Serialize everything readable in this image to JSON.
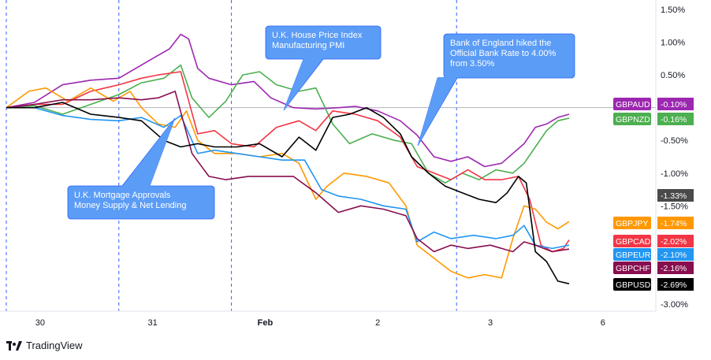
{
  "brand": {
    "name": "TradingView"
  },
  "annotations": [
    {
      "id": "house-price",
      "text": [
        "U.K. House Price Index",
        "Manufacturing PMI"
      ]
    },
    {
      "id": "boe",
      "text": [
        "Bank of England hiked the",
        "Official Bank Rate to 4.00%",
        "from 3.50%"
      ]
    },
    {
      "id": "mortgage",
      "text": [
        "U.K. Mortgage Approvals",
        "Money Supply & Net Lending"
      ]
    }
  ],
  "chart_data": {
    "type": "line",
    "ylim": [
      -3.15,
      1.6
    ],
    "yticks": [
      1.5,
      1.0,
      0.5,
      -0.5,
      -1.0,
      -1.5,
      -3.0
    ],
    "ytick_labels": [
      "1.50%",
      "1.00%",
      "0.50%",
      "-0.50%",
      "-1.00%",
      "-1.50%",
      "-3.00%"
    ],
    "x_ticks": [
      {
        "label": "30",
        "t": 0.3,
        "bold": false
      },
      {
        "label": "31",
        "t": 1.3,
        "bold": false
      },
      {
        "label": "Feb",
        "t": 2.3,
        "bold": true
      },
      {
        "label": "2",
        "t": 3.3,
        "bold": false
      },
      {
        "label": "3",
        "t": 4.3,
        "bold": false
      },
      {
        "label": "6",
        "t": 5.3,
        "bold": false
      }
    ],
    "session_lines": [
      0.0,
      1.0,
      2.0,
      4.0
    ],
    "current_value_tag": {
      "value": -1.33,
      "label": "-1.33%",
      "color": "#4a4a4a"
    },
    "series": [
      {
        "name": "GBPAUD",
        "color": "#9c27b0",
        "last_label": "-0.10%",
        "points": [
          [
            0,
            0
          ],
          [
            0.25,
            0.08
          ],
          [
            0.5,
            0.35
          ],
          [
            0.75,
            0.42
          ],
          [
            1.0,
            0.45
          ],
          [
            1.15,
            0.6
          ],
          [
            1.3,
            0.75
          ],
          [
            1.45,
            0.9
          ],
          [
            1.55,
            1.12
          ],
          [
            1.62,
            1.05
          ],
          [
            1.7,
            0.6
          ],
          [
            1.8,
            0.45
          ],
          [
            2.0,
            0.35
          ],
          [
            2.2,
            0.4
          ],
          [
            2.35,
            0.15
          ],
          [
            2.55,
            0.0
          ],
          [
            2.75,
            -0.02
          ],
          [
            2.95,
            0.0
          ],
          [
            3.1,
            0.02
          ],
          [
            3.3,
            -0.05
          ],
          [
            3.5,
            -0.2
          ],
          [
            3.65,
            -0.42
          ],
          [
            3.8,
            -0.75
          ],
          [
            3.95,
            -0.82
          ],
          [
            4.1,
            -0.75
          ],
          [
            4.25,
            -0.9
          ],
          [
            4.4,
            -0.85
          ],
          [
            4.5,
            -0.7
          ],
          [
            4.6,
            -0.55
          ],
          [
            4.7,
            -0.3
          ],
          [
            4.8,
            -0.25
          ],
          [
            4.9,
            -0.15
          ],
          [
            5.0,
            -0.1
          ]
        ]
      },
      {
        "name": "GBPNZD",
        "color": "#4caf50",
        "last_label": "-0.16%",
        "points": [
          [
            0,
            0
          ],
          [
            0.25,
            0.03
          ],
          [
            0.5,
            -0.1
          ],
          [
            0.75,
            0.05
          ],
          [
            1.0,
            0.2
          ],
          [
            1.2,
            0.38
          ],
          [
            1.4,
            0.45
          ],
          [
            1.55,
            0.65
          ],
          [
            1.65,
            0.15
          ],
          [
            1.8,
            -0.15
          ],
          [
            1.95,
            0.1
          ],
          [
            2.1,
            0.5
          ],
          [
            2.25,
            0.55
          ],
          [
            2.4,
            0.35
          ],
          [
            2.6,
            0.25
          ],
          [
            2.75,
            0.3
          ],
          [
            2.9,
            -0.25
          ],
          [
            3.05,
            -0.55
          ],
          [
            3.25,
            -0.4
          ],
          [
            3.45,
            -0.5
          ],
          [
            3.6,
            -0.55
          ],
          [
            3.75,
            -1.0
          ],
          [
            3.9,
            -1.15
          ],
          [
            4.05,
            -1.0
          ],
          [
            4.2,
            -1.1
          ],
          [
            4.35,
            -0.95
          ],
          [
            4.5,
            -1.0
          ],
          [
            4.6,
            -0.85
          ],
          [
            4.7,
            -0.6
          ],
          [
            4.8,
            -0.35
          ],
          [
            4.9,
            -0.2
          ],
          [
            5.0,
            -0.16
          ]
        ]
      },
      {
        "name": "GBPCAD",
        "color": "#f23645",
        "last_label": "-2.02%",
        "points": [
          [
            0,
            0
          ],
          [
            0.25,
            0.05
          ],
          [
            0.5,
            0.05
          ],
          [
            0.75,
            0.25
          ],
          [
            1.0,
            0.35
          ],
          [
            1.2,
            0.45
          ],
          [
            1.35,
            0.5
          ],
          [
            1.55,
            0.55
          ],
          [
            1.7,
            -0.4
          ],
          [
            1.85,
            -0.35
          ],
          [
            2.0,
            -0.55
          ],
          [
            2.2,
            -0.6
          ],
          [
            2.4,
            -0.3
          ],
          [
            2.6,
            -0.2
          ],
          [
            2.75,
            -0.35
          ],
          [
            2.9,
            -0.05
          ],
          [
            3.1,
            -0.1
          ],
          [
            3.3,
            -0.2
          ],
          [
            3.5,
            -0.45
          ],
          [
            3.65,
            -0.9
          ],
          [
            3.8,
            -1.0
          ],
          [
            3.95,
            -1.1
          ],
          [
            4.1,
            -0.95
          ],
          [
            4.25,
            -1.1
          ],
          [
            4.4,
            -1.1
          ],
          [
            4.55,
            -1.05
          ],
          [
            4.65,
            -1.4
          ],
          [
            4.75,
            -2.1
          ],
          [
            4.85,
            -2.2
          ],
          [
            4.95,
            -2.15
          ],
          [
            5.0,
            -2.02
          ]
        ]
      },
      {
        "name": "GBPJPY",
        "color": "#ff9800",
        "last_label": "-1.74%",
        "points": [
          [
            0,
            0
          ],
          [
            0.2,
            0.25
          ],
          [
            0.35,
            0.3
          ],
          [
            0.55,
            0.1
          ],
          [
            0.75,
            0.3
          ],
          [
            0.95,
            0.1
          ],
          [
            1.1,
            0.25
          ],
          [
            1.2,
            0.0
          ],
          [
            1.35,
            -0.25
          ],
          [
            1.5,
            -0.3
          ],
          [
            1.6,
            -0.05
          ],
          [
            1.7,
            -0.5
          ],
          [
            1.85,
            -0.7
          ],
          [
            2.05,
            -0.7
          ],
          [
            2.25,
            -0.75
          ],
          [
            2.45,
            -0.7
          ],
          [
            2.6,
            -0.85
          ],
          [
            2.75,
            -1.4
          ],
          [
            2.85,
            -1.2
          ],
          [
            3.0,
            -1.0
          ],
          [
            3.2,
            -1.05
          ],
          [
            3.4,
            -1.15
          ],
          [
            3.55,
            -1.5
          ],
          [
            3.65,
            -2.1
          ],
          [
            3.8,
            -2.3
          ],
          [
            3.95,
            -2.5
          ],
          [
            4.1,
            -2.6
          ],
          [
            4.25,
            -2.55
          ],
          [
            4.4,
            -2.6
          ],
          [
            4.5,
            -2.0
          ],
          [
            4.6,
            -1.5
          ],
          [
            4.7,
            -1.55
          ],
          [
            4.8,
            -1.75
          ],
          [
            4.9,
            -1.85
          ],
          [
            5.0,
            -1.74
          ]
        ]
      },
      {
        "name": "GBPEUR",
        "color": "#2196f3",
        "last_label": "-2.10%",
        "points": [
          [
            0,
            0
          ],
          [
            0.25,
            0.0
          ],
          [
            0.5,
            -0.12
          ],
          [
            0.75,
            -0.18
          ],
          [
            1.0,
            -0.2
          ],
          [
            1.2,
            -0.15
          ],
          [
            1.4,
            -0.3
          ],
          [
            1.55,
            -0.12
          ],
          [
            1.7,
            -0.7
          ],
          [
            1.85,
            -0.65
          ],
          [
            2.05,
            -0.7
          ],
          [
            2.25,
            -0.75
          ],
          [
            2.45,
            -0.8
          ],
          [
            2.65,
            -0.8
          ],
          [
            2.8,
            -1.25
          ],
          [
            2.95,
            -1.35
          ],
          [
            3.15,
            -1.4
          ],
          [
            3.35,
            -1.5
          ],
          [
            3.55,
            -1.55
          ],
          [
            3.65,
            -2.05
          ],
          [
            3.8,
            -1.9
          ],
          [
            3.95,
            -2.0
          ],
          [
            4.15,
            -1.95
          ],
          [
            4.35,
            -2.0
          ],
          [
            4.5,
            -1.95
          ],
          [
            4.6,
            -1.8
          ],
          [
            4.7,
            -2.1
          ],
          [
            4.85,
            -2.15
          ],
          [
            5.0,
            -2.1
          ]
        ]
      },
      {
        "name": "GBPCHF",
        "color": "#880e4f",
        "last_label": "-2.16%",
        "points": [
          [
            0,
            0
          ],
          [
            0.25,
            0.05
          ],
          [
            0.5,
            0.12
          ],
          [
            0.75,
            0.12
          ],
          [
            1.0,
            0.15
          ],
          [
            1.2,
            0.12
          ],
          [
            1.35,
            0.15
          ],
          [
            1.5,
            0.25
          ],
          [
            1.65,
            -0.7
          ],
          [
            1.8,
            -1.05
          ],
          [
            1.95,
            -1.1
          ],
          [
            2.15,
            -1.05
          ],
          [
            2.35,
            -1.05
          ],
          [
            2.55,
            -1.05
          ],
          [
            2.75,
            -1.3
          ],
          [
            2.95,
            -1.6
          ],
          [
            3.15,
            -1.5
          ],
          [
            3.35,
            -1.55
          ],
          [
            3.55,
            -1.65
          ],
          [
            3.65,
            -2.0
          ],
          [
            3.8,
            -2.2
          ],
          [
            3.95,
            -2.1
          ],
          [
            4.1,
            -2.15
          ],
          [
            4.3,
            -2.1
          ],
          [
            4.5,
            -2.2
          ],
          [
            4.6,
            -2.05
          ],
          [
            4.7,
            -2.1
          ],
          [
            4.85,
            -2.2
          ],
          [
            5.0,
            -2.16
          ]
        ]
      },
      {
        "name": "GBPUSD",
        "color": "#000000",
        "last_label": "-2.69%",
        "points": [
          [
            0,
            0
          ],
          [
            0.25,
            0.0
          ],
          [
            0.5,
            0.08
          ],
          [
            0.75,
            -0.1
          ],
          [
            1.0,
            -0.15
          ],
          [
            1.2,
            -0.2
          ],
          [
            1.4,
            -0.5
          ],
          [
            1.55,
            -0.6
          ],
          [
            1.7,
            -0.55
          ],
          [
            1.85,
            -0.6
          ],
          [
            2.05,
            -0.6
          ],
          [
            2.25,
            -0.55
          ],
          [
            2.45,
            -0.75
          ],
          [
            2.6,
            -0.45
          ],
          [
            2.75,
            -0.65
          ],
          [
            2.9,
            -0.15
          ],
          [
            3.05,
            -0.1
          ],
          [
            3.2,
            0.0
          ],
          [
            3.35,
            -0.15
          ],
          [
            3.5,
            -0.4
          ],
          [
            3.6,
            -0.75
          ],
          [
            3.75,
            -1.0
          ],
          [
            3.9,
            -1.2
          ],
          [
            4.05,
            -1.3
          ],
          [
            4.2,
            -1.4
          ],
          [
            4.35,
            -1.45
          ],
          [
            4.45,
            -1.3
          ],
          [
            4.55,
            -1.05
          ],
          [
            4.62,
            -1.15
          ],
          [
            4.7,
            -2.2
          ],
          [
            4.8,
            -2.35
          ],
          [
            4.9,
            -2.65
          ],
          [
            5.0,
            -2.69
          ]
        ]
      }
    ]
  }
}
